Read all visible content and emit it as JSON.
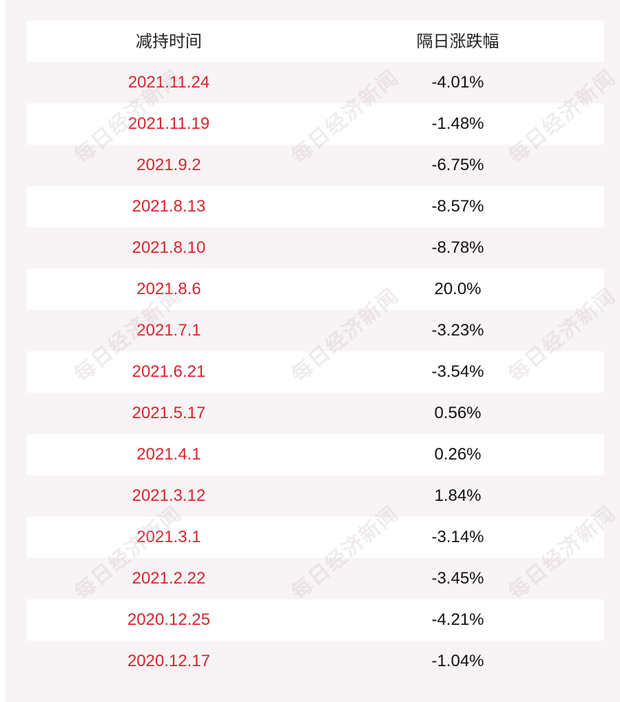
{
  "table": {
    "headers": {
      "date": "减持时间",
      "change": "隔日涨跌幅"
    },
    "rows": [
      {
        "date": "2021.11.24",
        "change": "-4.01%"
      },
      {
        "date": "2021.11.19",
        "change": "-1.48%"
      },
      {
        "date": "2021.9.2",
        "change": "-6.75%"
      },
      {
        "date": "2021.8.13",
        "change": "-8.57%"
      },
      {
        "date": "2021.8.10",
        "change": "-8.78%"
      },
      {
        "date": "2021.8.6",
        "change": "20.0%"
      },
      {
        "date": "2021.7.1",
        "change": "-3.23%"
      },
      {
        "date": "2021.6.21",
        "change": "-3.54%"
      },
      {
        "date": "2021.5.17",
        "change": "0.56%"
      },
      {
        "date": "2021.4.1",
        "change": "0.26%"
      },
      {
        "date": "2021.3.12",
        "change": "1.84%"
      },
      {
        "date": "2021.3.1",
        "change": "-3.14%"
      },
      {
        "date": "2021.2.22",
        "change": "-3.45%"
      },
      {
        "date": "2020.12.25",
        "change": "-4.21%"
      },
      {
        "date": "2020.12.17",
        "change": "-1.04%"
      }
    ]
  },
  "watermark": {
    "text": "每日经济新闻"
  },
  "colors": {
    "date_text": "#d9232d",
    "change_text": "#111111",
    "stripe_light": "#ffffff",
    "stripe_tint": "#f8f3f4"
  }
}
